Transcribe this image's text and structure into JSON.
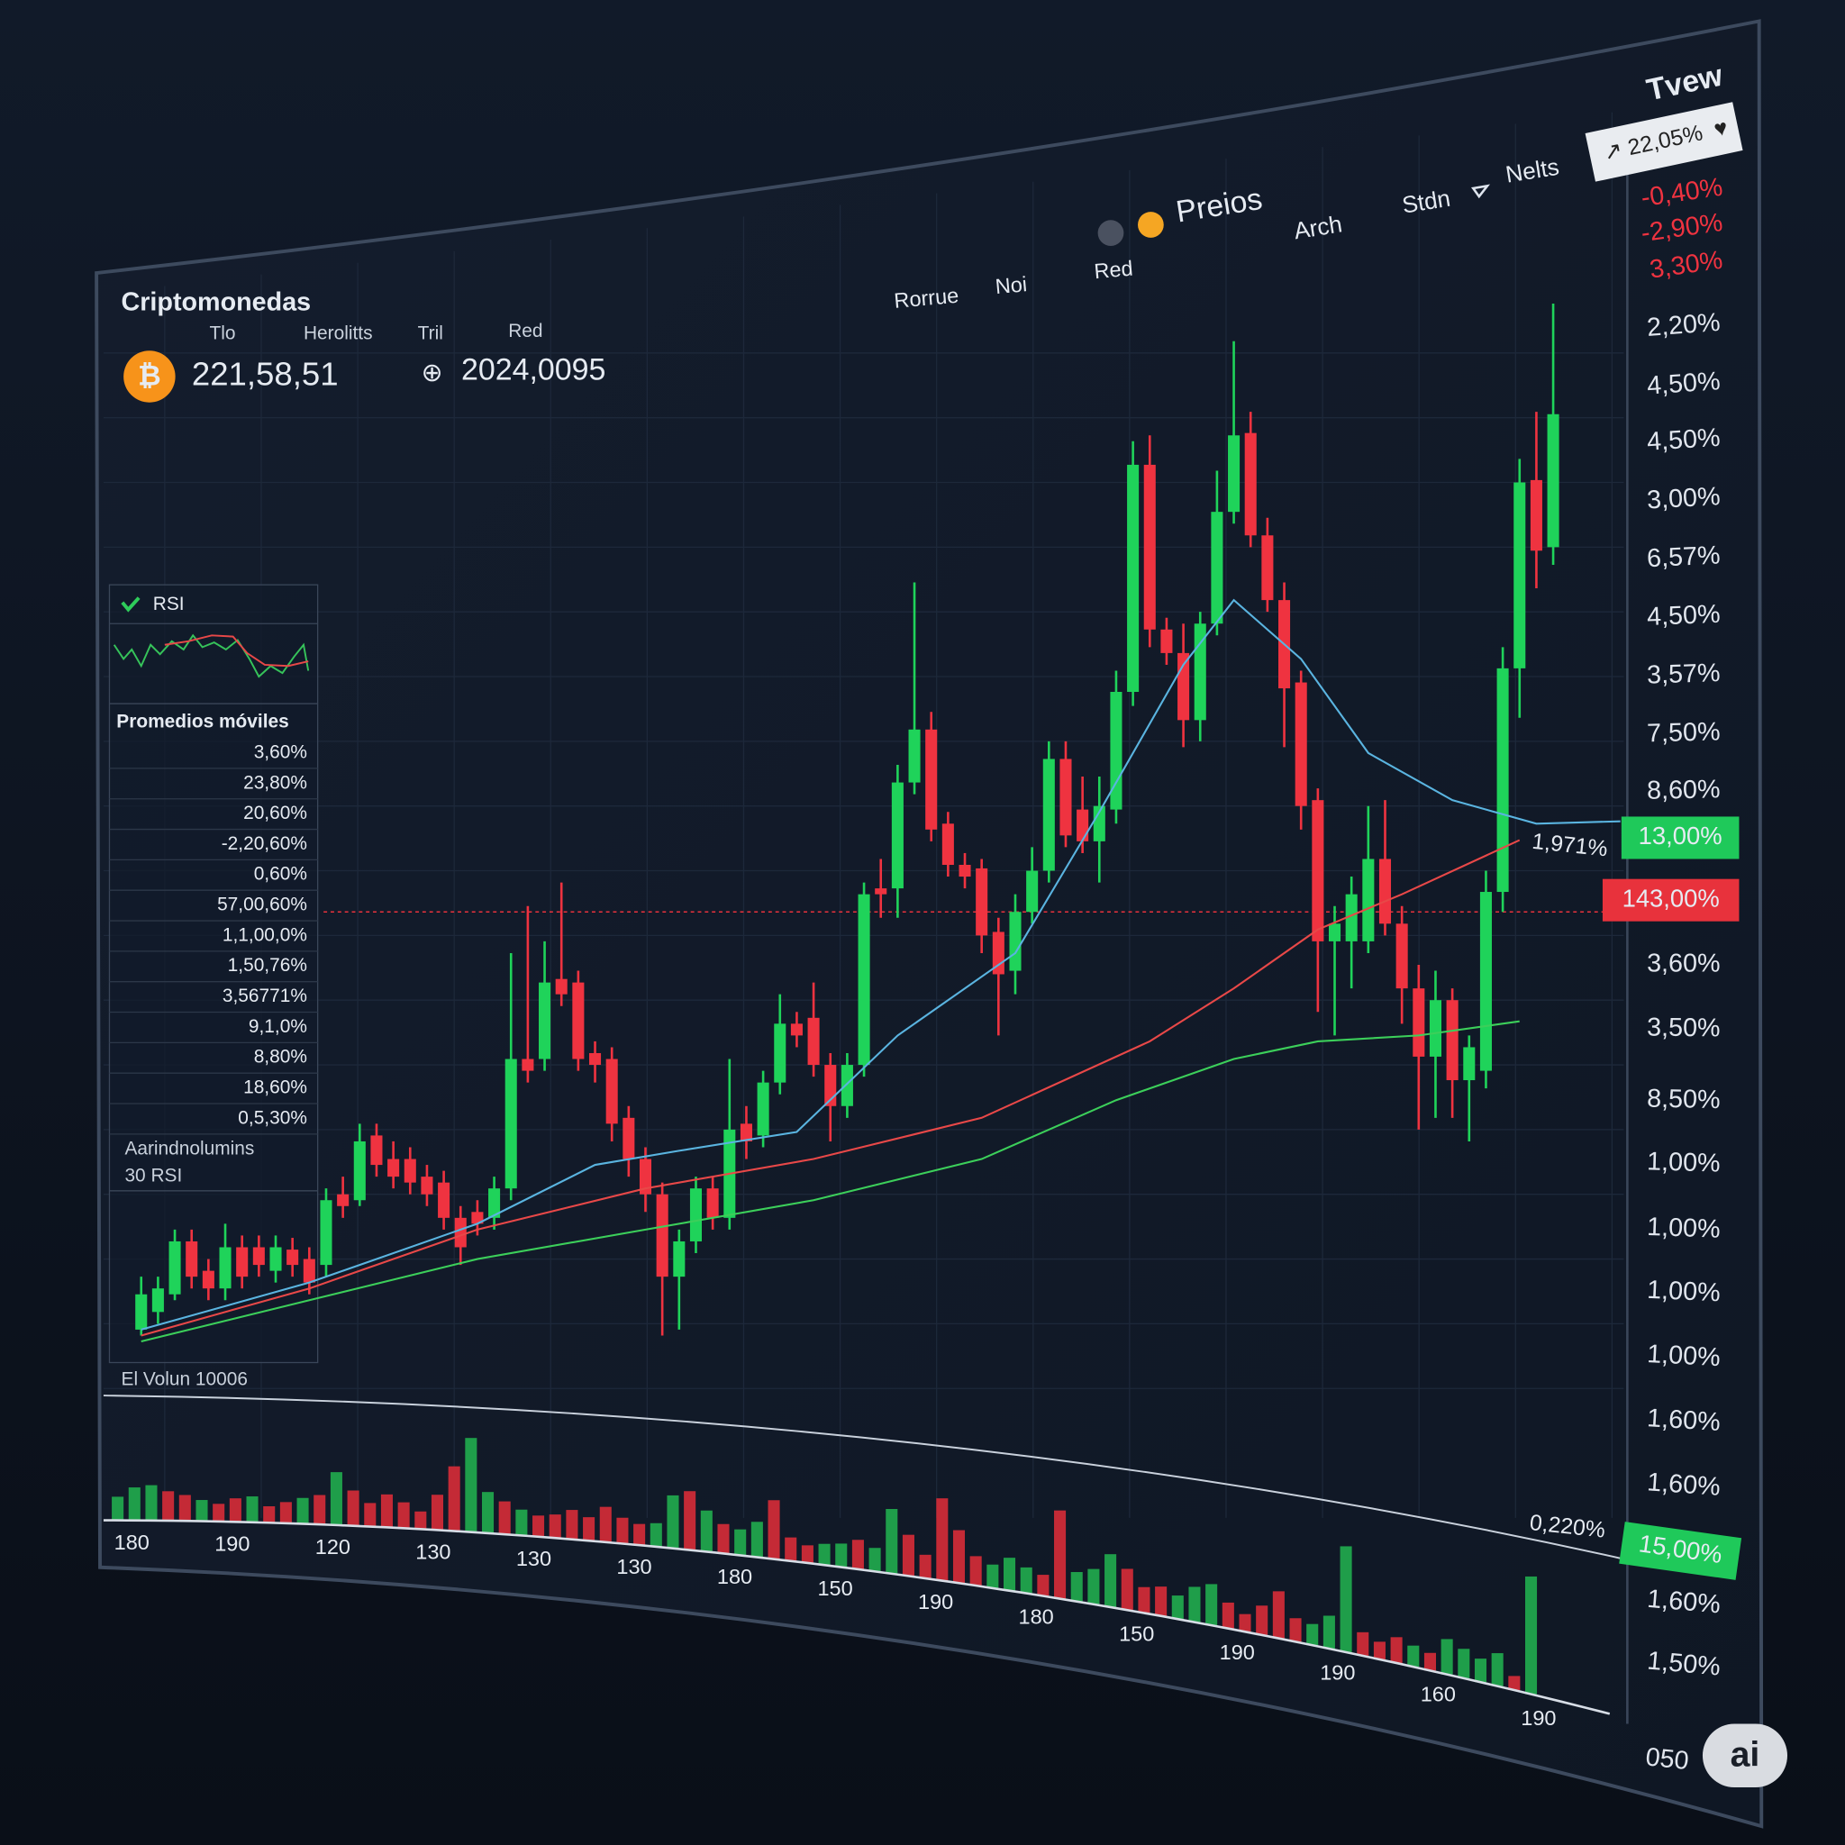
{
  "toolbar": {
    "brand": "Tvew",
    "badge": "↗ 22,05%",
    "tabs": [
      "Preios",
      "Arch",
      "Stdn",
      "Nelts"
    ],
    "subtabs": [
      "Rorrue",
      "Noi",
      "Red"
    ]
  },
  "ticker": {
    "title": "Criptomonedas",
    "columns": [
      "Tlo",
      "Herolitts",
      "Tril",
      "Red"
    ],
    "price": "221,58,51",
    "change": "2024,0095"
  },
  "side_panel": {
    "rsi_label": "RSI",
    "ma_title": "Promedios móviles",
    "ma_values": [
      "3,60%",
      "23,80%",
      "20,60%",
      "-2,20,60%",
      "0,60%",
      "57,00,60%",
      "1,1,00,0%",
      "1,50,76%",
      "3,56771%",
      "9,1,0%",
      "8,80%",
      "18,60%",
      "0,5,30%"
    ],
    "section": "Aarindnolumins",
    "rsi_period": "30 RSI"
  },
  "volume_label": "El Volun 10006",
  "price_chart": {
    "type": "candlestick",
    "ylim": [
      0,
      900
    ],
    "up_color": "#1fd35a",
    "down_color": "#ef3340",
    "open": [
      20,
      35,
      50,
      95,
      70,
      55,
      90,
      90,
      70,
      88,
      80,
      75,
      135,
      130,
      185,
      165,
      165,
      150,
      145,
      115,
      120,
      115,
      140,
      250,
      250,
      318,
      315,
      255,
      250,
      200,
      165,
      135,
      65,
      95,
      140,
      115,
      195,
      185,
      230,
      280,
      285,
      245,
      210,
      245,
      395,
      395,
      485,
      530,
      450,
      415,
      412,
      358,
      325,
      375,
      410,
      505,
      462,
      435,
      462,
      562,
      755,
      615,
      595,
      538,
      620,
      715,
      782,
      695,
      640,
      570,
      470,
      350,
      350,
      350,
      420,
      365,
      310,
      252,
      300,
      232,
      240,
      392,
      582,
      742,
      685
    ],
    "high": [
      65,
      65,
      105,
      105,
      80,
      110,
      100,
      100,
      100,
      98,
      90,
      140,
      150,
      195,
      195,
      180,
      175,
      160,
      155,
      125,
      130,
      150,
      340,
      380,
      350,
      400,
      325,
      265,
      260,
      210,
      175,
      145,
      105,
      150,
      150,
      250,
      210,
      240,
      305,
      290,
      315,
      255,
      255,
      400,
      420,
      500,
      655,
      545,
      460,
      425,
      420,
      370,
      390,
      430,
      520,
      520,
      490,
      490,
      580,
      775,
      780,
      625,
      620,
      630,
      750,
      860,
      800,
      710,
      655,
      580,
      480,
      380,
      405,
      465,
      470,
      380,
      330,
      325,
      310,
      270,
      410,
      600,
      760,
      800,
      892
    ],
    "low": [
      15,
      25,
      45,
      55,
      45,
      45,
      55,
      65,
      60,
      65,
      50,
      65,
      115,
      125,
      150,
      140,
      135,
      125,
      105,
      75,
      100,
      105,
      130,
      230,
      240,
      295,
      240,
      230,
      180,
      150,
      120,
      15,
      20,
      85,
      105,
      105,
      165,
      175,
      220,
      260,
      235,
      180,
      200,
      235,
      370,
      370,
      475,
      435,
      405,
      395,
      340,
      270,
      305,
      365,
      400,
      430,
      425,
      400,
      450,
      550,
      600,
      585,
      515,
      520,
      610,
      705,
      685,
      630,
      515,
      445,
      290,
      270,
      310,
      340,
      355,
      280,
      190,
      200,
      200,
      180,
      225,
      375,
      540,
      650,
      670
    ],
    "close": [
      50,
      55,
      95,
      65,
      55,
      90,
      65,
      75,
      90,
      75,
      60,
      130,
      125,
      180,
      160,
      150,
      145,
      135,
      115,
      90,
      110,
      140,
      250,
      240,
      315,
      305,
      250,
      245,
      195,
      165,
      135,
      65,
      95,
      140,
      115,
      190,
      180,
      230,
      280,
      270,
      245,
      210,
      245,
      390,
      390,
      485,
      530,
      445,
      415,
      405,
      355,
      322,
      375,
      410,
      505,
      440,
      435,
      465,
      562,
      755,
      615,
      595,
      538,
      620,
      715,
      780,
      695,
      640,
      565,
      465,
      350,
      365,
      390,
      420,
      365,
      310,
      252,
      300,
      232,
      260,
      392,
      582,
      740,
      682,
      798
    ],
    "volume": [
      20,
      28,
      30,
      25,
      22,
      18,
      15,
      20,
      22,
      14,
      18,
      22,
      25,
      45,
      30,
      20,
      28,
      22,
      15,
      30,
      55,
      80,
      35,
      28,
      22,
      18,
      20,
      25,
      20,
      30,
      22,
      18,
      20,
      45,
      50,
      35,
      25,
      22,
      30,
      50,
      20,
      15,
      18,
      20,
      25,
      20,
      55,
      35,
      20,
      70,
      45,
      25,
      20,
      28,
      22,
      18,
      75,
      25,
      30,
      45,
      35,
      22,
      25,
      20,
      30,
      35,
      22,
      15,
      25,
      40,
      20,
      18,
      28,
      90,
      20,
      15,
      22,
      18,
      15,
      30,
      25,
      20,
      28,
      12,
      100
    ],
    "reference_level": 375,
    "reference_color": "#e8323c",
    "moving_averages": [
      {
        "color": "#5ab4e0",
        "x": [
          0,
          10,
          20,
          27,
          32,
          39,
          45,
          52,
          57,
          62,
          65,
          69,
          73,
          78,
          83,
          88
        ],
        "values": [
          20,
          60,
          110,
          160,
          172,
          188,
          270,
          340,
          460,
          585,
          640,
          590,
          510,
          470,
          450,
          452
        ]
      },
      {
        "color": "#e84848",
        "x": [
          0,
          10,
          20,
          30,
          40,
          50,
          60,
          65,
          70,
          75,
          82
        ],
        "values": [
          15,
          55,
          105,
          140,
          165,
          200,
          265,
          310,
          360,
          390,
          436
        ]
      },
      {
        "color": "#3ccf5a",
        "x": [
          0,
          10,
          20,
          30,
          40,
          50,
          58,
          65,
          70,
          76,
          82
        ],
        "values": [
          10,
          45,
          80,
          105,
          130,
          165,
          215,
          250,
          265,
          270,
          282
        ]
      }
    ]
  },
  "right_axis": {
    "top_changes": [
      "-0,40%",
      "-2,90%",
      "3,30%"
    ],
    "labels": [
      "2,20%",
      "4,50%",
      "4,50%",
      "3,00%",
      "6,57%",
      "4,50%",
      "3,57%",
      "7,50%",
      "8,60%",
      "3,60%",
      "3,50%",
      "8,50%",
      "1,00%",
      "1,00%",
      "1,00%",
      "1,00%",
      "1,60%",
      "1,60%",
      "1,60%",
      "1,50%",
      "050"
    ],
    "tags": [
      {
        "text": "13,00%",
        "color": "#1fc95a"
      },
      {
        "text": "143,00%",
        "color": "#e8323c"
      },
      {
        "text": "15,00%",
        "color": "#1fc95a"
      }
    ]
  },
  "annotations": [
    "1,971%",
    "0,220%"
  ],
  "x_labels": [
    "180",
    "190",
    "120",
    "130",
    "130",
    "130",
    "180",
    "150",
    "190",
    "180",
    "150",
    "190",
    "190",
    "160",
    "190"
  ]
}
